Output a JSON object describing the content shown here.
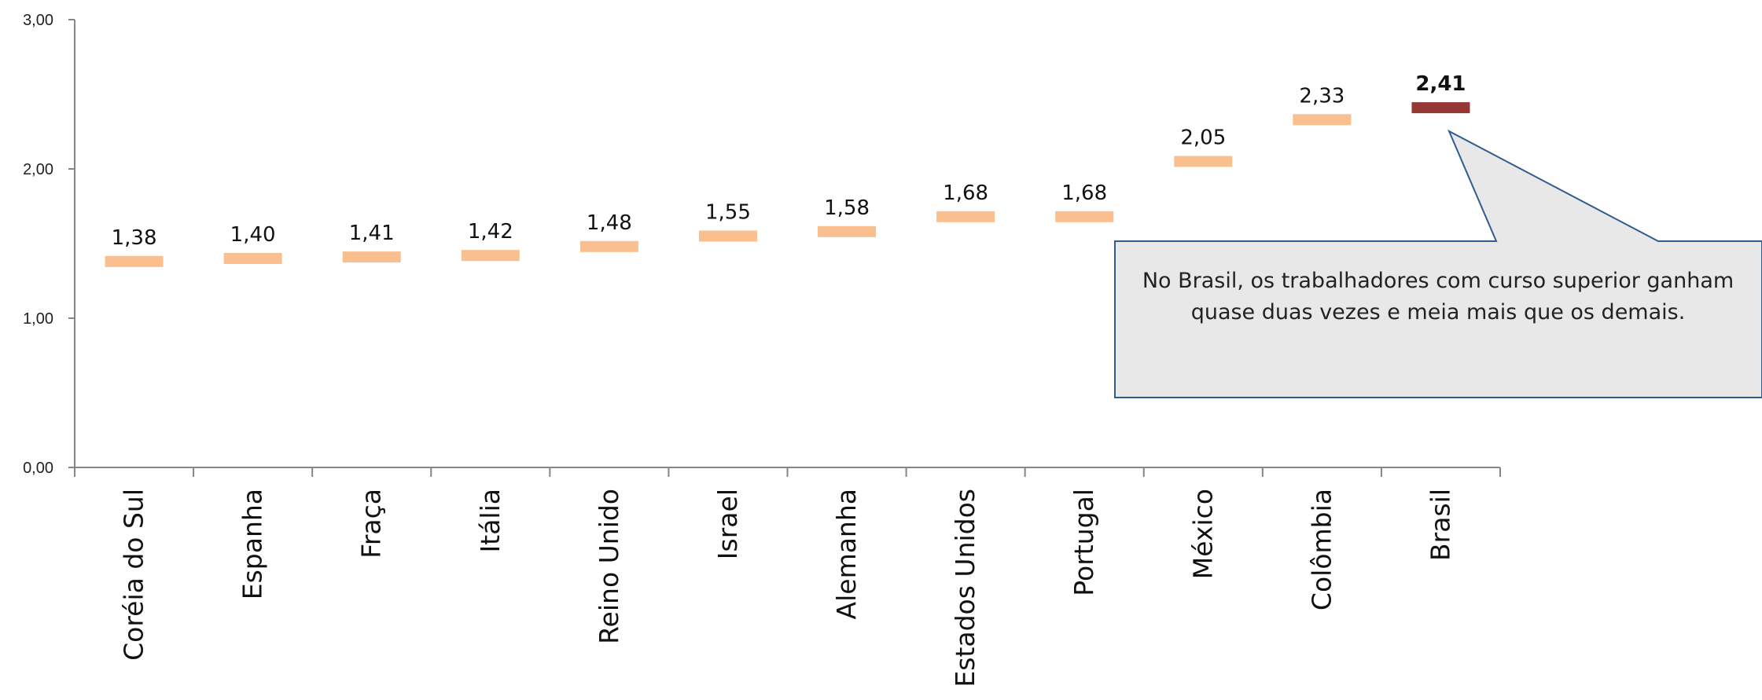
{
  "chart_data": {
    "type": "bar",
    "categories": [
      "Coréia do Sul",
      "Espanha",
      "Fraça",
      "Itália",
      "Reino Unido",
      "Israel",
      "Alemanha",
      "Estados Unidos",
      "Portugal",
      "México",
      "Colômbia",
      "Brasil"
    ],
    "values": [
      1.38,
      1.4,
      1.41,
      1.42,
      1.48,
      1.55,
      1.58,
      1.68,
      1.68,
      2.05,
      2.33,
      2.41
    ],
    "value_labels": [
      "1,38",
      "1,40",
      "1,41",
      "1,42",
      "1,48",
      "1,55",
      "1,58",
      "1,68",
      "1,68",
      "2,05",
      "2,33",
      "2,41"
    ],
    "y_ticks": [
      0,
      1,
      2,
      3
    ],
    "y_tick_labels": [
      "0,00",
      "1,00",
      "2,00",
      "3,00"
    ],
    "ylim": [
      0,
      3
    ],
    "grid": false,
    "highlight_index": 11,
    "colors": {
      "marker": "#f9bf8f",
      "highlight": "#953735",
      "axis": "#868686",
      "callout_fill": "#e8e8e8",
      "callout_border": "#2e5d8e"
    },
    "annotation": "No Brasil, os trabalhadores com curso superior ganham quase duas vezes e meia mais que os demais."
  }
}
